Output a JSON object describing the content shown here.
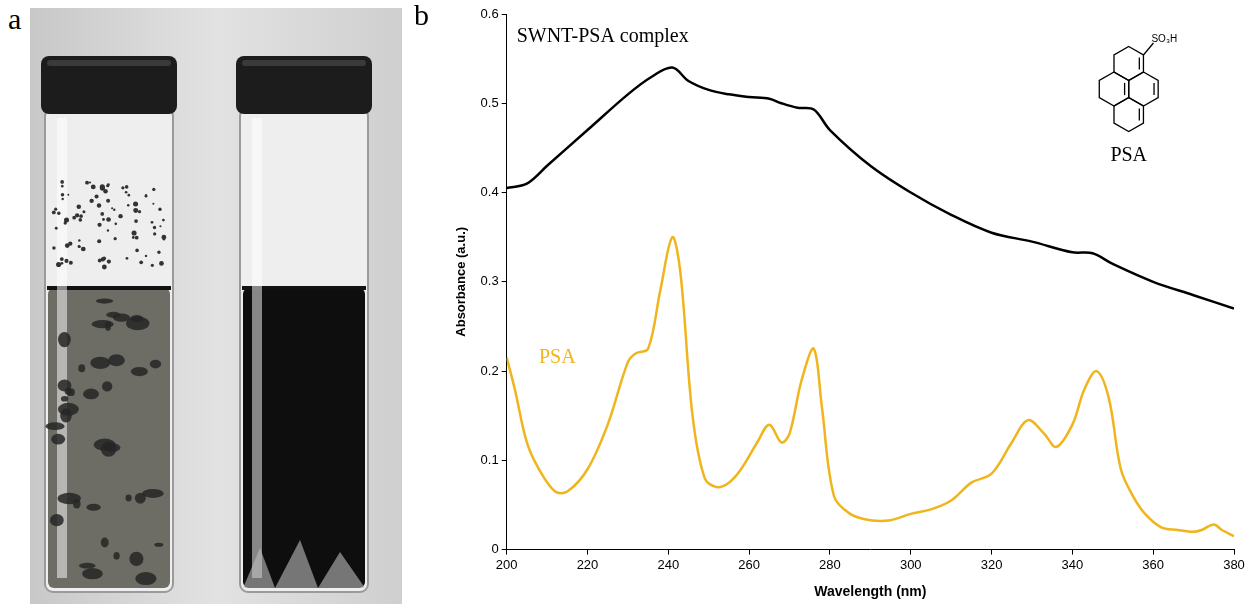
{
  "panel_labels": [
    "a",
    "b"
  ],
  "structure": {
    "name": "PSA",
    "group": "SO₃H"
  },
  "chart_data": {
    "type": "line",
    "x_label": "Wavelength (nm)",
    "y_label": "Absorbance (a.u.)",
    "xlim": [
      200,
      380
    ],
    "xticks": [
      200,
      220,
      240,
      260,
      280,
      300,
      320,
      340,
      360,
      380
    ],
    "ylim": [
      0,
      0.6
    ],
    "yticks": [
      0,
      0.1,
      0.2,
      0.3,
      0.4,
      0.5,
      0.6
    ],
    "grid": false,
    "series": [
      {
        "name": "SWNT-PSA complex",
        "color": "#000000",
        "marker": "none",
        "line_style": "solid",
        "x": [
          200,
          205,
          210,
          220,
          230,
          236,
          241,
          245,
          250,
          255,
          260,
          265,
          268,
          272,
          276,
          280,
          290,
          300,
          310,
          320,
          330,
          340,
          345,
          350,
          360,
          370,
          380
        ],
        "values": [
          0.405,
          0.41,
          0.43,
          0.47,
          0.51,
          0.53,
          0.54,
          0.525,
          0.515,
          0.51,
          0.507,
          0.505,
          0.5,
          0.495,
          0.493,
          0.47,
          0.43,
          0.4,
          0.375,
          0.355,
          0.345,
          0.333,
          0.332,
          0.32,
          0.3,
          0.285,
          0.27
        ]
      },
      {
        "name": "PSA",
        "color": "#f0b41c",
        "marker": "none",
        "line_style": "solid",
        "x": [
          200,
          202,
          205,
          208,
          212,
          215,
          220,
          225,
          230,
          232,
          235,
          238,
          241,
          243,
          246,
          249,
          252,
          255,
          258,
          262,
          265,
          268,
          270,
          273,
          276,
          278,
          281,
          285,
          290,
          295,
          300,
          305,
          310,
          315,
          320,
          325,
          329,
          333,
          336,
          340,
          343,
          346,
          349,
          352,
          355,
          358,
          362,
          366,
          370,
          372,
          375,
          377,
          380
        ],
        "values": [
          0.215,
          0.18,
          0.12,
          0.09,
          0.065,
          0.065,
          0.09,
          0.14,
          0.21,
          0.22,
          0.225,
          0.29,
          0.35,
          0.31,
          0.15,
          0.08,
          0.07,
          0.075,
          0.09,
          0.12,
          0.14,
          0.12,
          0.13,
          0.19,
          0.225,
          0.16,
          0.06,
          0.04,
          0.033,
          0.033,
          0.04,
          0.045,
          0.055,
          0.075,
          0.085,
          0.12,
          0.145,
          0.13,
          0.115,
          0.14,
          0.18,
          0.2,
          0.17,
          0.09,
          0.06,
          0.04,
          0.025,
          0.022,
          0.02,
          0.022,
          0.028,
          0.022,
          0.015
        ]
      }
    ]
  }
}
